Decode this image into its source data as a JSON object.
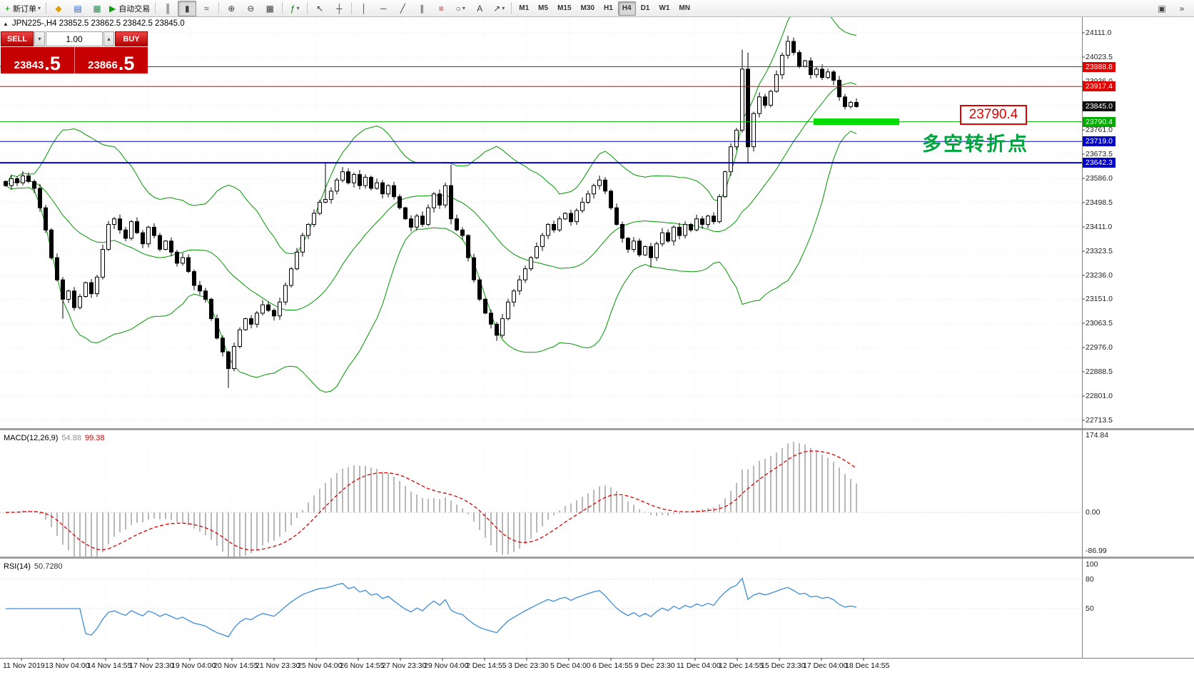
{
  "toolbar": {
    "items": [
      {
        "kind": "labeled",
        "name": "new-order-button",
        "icon": "new-order-icon",
        "glyph": "+",
        "glyph_color": "#0a9a0a",
        "label": "新订单",
        "caret": true
      },
      {
        "kind": "sep"
      },
      {
        "kind": "icon",
        "name": "metaquotes-button",
        "icon": "diamond-icon",
        "glyph": "◆",
        "glyph_color": "#e0a000"
      },
      {
        "kind": "icon",
        "name": "profiles-button",
        "icon": "profile-icon",
        "glyph": "▤",
        "glyph_color": "#3060c0"
      },
      {
        "kind": "icon",
        "name": "chart-window-button",
        "icon": "chart-window-icon",
        "glyph": "▦",
        "glyph_color": "#2e8b57"
      },
      {
        "kind": "labeled",
        "name": "auto-trading-button",
        "icon": "play-icon",
        "glyph": "▶",
        "glyph_color": "#0aa00a",
        "label": "自动交易",
        "caret": false
      },
      {
        "kind": "sep"
      },
      {
        "kind": "icon",
        "name": "ohlc-bars-button",
        "icon": "bars-chart-icon",
        "glyph": "║",
        "glyph_color": "#404040"
      },
      {
        "kind": "icon",
        "name": "candlestick-chart-button",
        "icon": "candlestick-icon",
        "glyph": "▮",
        "glyph_color": "#404040",
        "active": true
      },
      {
        "kind": "icon",
        "name": "line-chart-button",
        "icon": "line-chart-icon",
        "glyph": "≈",
        "glyph_color": "#404040"
      },
      {
        "kind": "sep"
      },
      {
        "kind": "icon",
        "name": "zoom-in-button",
        "icon": "zoom-in-icon",
        "glyph": "⊕",
        "glyph_color": "#404040"
      },
      {
        "kind": "icon",
        "name": "zoom-out-button",
        "icon": "zoom-out-icon",
        "glyph": "⊖",
        "glyph_color": "#404040"
      },
      {
        "kind": "icon",
        "name": "tile-windows-button",
        "icon": "tile-windows-icon",
        "glyph": "▦",
        "glyph_color": "#404040"
      },
      {
        "kind": "sep"
      },
      {
        "kind": "icon",
        "name": "indicators-button",
        "icon": "indicators-icon",
        "glyph": "ƒ",
        "glyph_color": "#0a7a0a",
        "caret": true
      },
      {
        "kind": "sep"
      },
      {
        "kind": "icon",
        "name": "cursor-button",
        "icon": "cursor-icon",
        "glyph": "↖",
        "glyph_color": "#404040"
      },
      {
        "kind": "icon",
        "name": "crosshair-button",
        "icon": "crosshair-icon",
        "glyph": "┼",
        "glyph_color": "#404040"
      },
      {
        "kind": "sep"
      },
      {
        "kind": "icon",
        "name": "vertical-line-button",
        "icon": "vertical-line-icon",
        "glyph": "│",
        "glyph_color": "#404040"
      },
      {
        "kind": "icon",
        "name": "horizontal-line-button",
        "icon": "horizontal-line-icon",
        "glyph": "─",
        "glyph_color": "#404040"
      },
      {
        "kind": "icon",
        "name": "trendline-button",
        "icon": "trendline-icon",
        "glyph": "╱",
        "glyph_color": "#404040"
      },
      {
        "kind": "icon",
        "name": "channel-button",
        "icon": "channel-icon",
        "glyph": "∥",
        "glyph_color": "#404040"
      },
      {
        "kind": "icon",
        "name": "fibonacci-button",
        "icon": "fibonacci-icon",
        "glyph": "≡",
        "glyph_color": "#b03030"
      },
      {
        "kind": "icon",
        "name": "shapes-button",
        "icon": "ellipse-icon",
        "glyph": "○",
        "glyph_color": "#404040",
        "caret": true
      },
      {
        "kind": "icon",
        "name": "text-label-button",
        "icon": "text-icon",
        "glyph": "A",
        "glyph_color": "#404040"
      },
      {
        "kind": "icon",
        "name": "arrows-button",
        "icon": "arrow-icon",
        "glyph": "↗",
        "glyph_color": "#404040",
        "caret": true
      },
      {
        "kind": "sep"
      }
    ],
    "timeframes": [
      "M1",
      "M5",
      "M15",
      "M30",
      "H1",
      "H4",
      "D1",
      "W1",
      "MN"
    ],
    "active_timeframe": "H4",
    "right_icons": [
      {
        "name": "dock-panel-button",
        "icon": "dock-icon",
        "glyph": "▣"
      },
      {
        "name": "more-tools-button",
        "icon": "overflow-icon",
        "glyph": "»"
      }
    ]
  },
  "chart_header": {
    "collapse_glyph": "▲",
    "symbol_line": "JPN225-,H4 23852.5 23862.5 23842.5 23845.0"
  },
  "trade_panel": {
    "sell_label": "SELL",
    "buy_label": "BUY",
    "volume_value": "1.00",
    "volume_down_glyph": "▾",
    "volume_up_glyph": "▴",
    "sell_price_main": "23843",
    "sell_price_pips": ".5",
    "buy_price_main": "23866",
    "buy_price_pips": ".5"
  },
  "price_axis": {
    "gridline_labels": [
      "24111.0",
      "24023.5",
      "23936.0",
      "23848.5",
      "23761.0",
      "23673.5",
      "23586.0",
      "23498.5",
      "23411.0",
      "23323.5",
      "23236.0",
      "23151.0",
      "23063.5",
      "22976.0",
      "22888.5",
      "22801.0",
      "22713.5"
    ],
    "tags": [
      {
        "label": "23988.8",
        "bg": "#e00000"
      },
      {
        "label": "23917.4",
        "bg": "#e00000"
      },
      {
        "label": "23845.0",
        "bg": "#101010"
      },
      {
        "label": "23790.4",
        "bg": "#00a800"
      },
      {
        "label": "23719.0",
        "bg": "#0000c8"
      },
      {
        "label": "23642.3",
        "bg": "#0000c8"
      }
    ]
  },
  "objects": {
    "horizontal_lines": [
      {
        "price": 23988.8,
        "color": "#e00000",
        "width": 1
      },
      {
        "price": 23917.4,
        "color": "#e00000",
        "width": 1
      },
      {
        "price": 23790.4,
        "color": "#00b400",
        "width": 1
      },
      {
        "price": 23719.0,
        "color": "#0000c8",
        "width": 1
      },
      {
        "price": 23642.3,
        "color": "#0000c8",
        "width": 2
      }
    ],
    "highlight_bar_price": 23790.4
  },
  "annotations": {
    "price_box_label": "23790.4",
    "turning_point_text": "多空转折点"
  },
  "macd_panel": {
    "name": "MACD(12,26,9)",
    "main_value": "54.88",
    "signal_value": "99.38",
    "scale_labels": [
      "174.84",
      "0.00",
      "-86.99"
    ]
  },
  "rsi_panel": {
    "name": "RSI(14)",
    "value": "50.7280",
    "scale_labels": [
      "100",
      "80",
      "50"
    ]
  },
  "time_axis": {
    "labels": [
      "11 Nov 2019",
      "13 Nov 04:00",
      "14 Nov 14:55",
      "17 Nov 23:30",
      "19 Nov 04:00",
      "20 Nov 14:55",
      "21 Nov 23:30",
      "25 Nov 04:00",
      "26 Nov 14:55",
      "27 Nov 23:30",
      "29 Nov 04:00",
      "2 Dec 14:55",
      "3 Dec 23:30",
      "5 Dec 04:00",
      "6 Dec 14:55",
      "9 Dec 23:30",
      "11 Dec 04:00",
      "12 Dec 14:55",
      "15 Dec 23:30",
      "17 Dec 04:00",
      "18 Dec 14:55"
    ]
  },
  "colors": {
    "bull_body": "#ffffff",
    "bear_body": "#000000",
    "candle_outline": "#000000",
    "bollinger": "#009600",
    "macd_histogram": "#b8b8b8",
    "macd_signal": "#dc0000",
    "rsi_line": "#3c8cdc",
    "grid": "#e6e6e6",
    "axis_border": "#808080",
    "highlight_bar": "#00dc00"
  },
  "chart_data": {
    "type": "candlestick",
    "title": "JPN225-,H4",
    "ohlc_display": {
      "open": "23852.5",
      "high": "23862.5",
      "low": "23842.5",
      "close": "23845.0"
    },
    "y_axis_range": [
      22713.5,
      24111.0
    ],
    "indicators": [
      "Bollinger Bands",
      "MACD(12,26,9)",
      "RSI(14)"
    ],
    "closes": [
      23560,
      23585,
      23570,
      23595,
      23575,
      23550,
      23480,
      23400,
      23300,
      23220,
      23150,
      23180,
      23120,
      23160,
      23210,
      23170,
      23230,
      23330,
      23420,
      23440,
      23400,
      23370,
      23430,
      23390,
      23350,
      23410,
      23380,
      23330,
      23360,
      23320,
      23280,
      23300,
      23250,
      23200,
      23180,
      23150,
      23080,
      23010,
      22960,
      22900,
      22980,
      23040,
      23080,
      23060,
      23100,
      23130,
      23110,
      23090,
      23140,
      23200,
      23260,
      23320,
      23380,
      23420,
      23460,
      23500,
      23510,
      23540,
      23580,
      23610,
      23570,
      23600,
      23560,
      23590,
      23550,
      23570,
      23530,
      23560,
      23520,
      23480,
      23440,
      23410,
      23450,
      23420,
      23480,
      23530,
      23490,
      23560,
      23440,
      23400,
      23380,
      23300,
      23220,
      23150,
      23100,
      23060,
      23020,
      23080,
      23140,
      23180,
      23220,
      23260,
      23300,
      23340,
      23380,
      23420,
      23400,
      23440,
      23460,
      23430,
      23470,
      23500,
      23530,
      23560,
      23580,
      23540,
      23480,
      23420,
      23370,
      23330,
      23360,
      23310,
      23340,
      23300,
      23350,
      23390,
      23360,
      23410,
      23380,
      23420,
      23400,
      23440,
      23420,
      23450,
      23430,
      23520,
      23610,
      23700,
      23760,
      23980,
      23700,
      23820,
      23880,
      23850,
      23900,
      23960,
      24030,
      24080,
      24040,
      23990,
      24010,
      23960,
      23980,
      23950,
      23970,
      23940,
      23880,
      23845,
      23860,
      23845
    ],
    "wick_overrides": {
      "10": {
        "low": 23080
      },
      "39": {
        "low": 22830
      },
      "56": {
        "high": 23645
      },
      "78": {
        "high": 23635,
        "low": 23420
      },
      "86": {
        "low": 23000
      },
      "113": {
        "low": 23265
      },
      "129": {
        "high": 24050
      },
      "130": {
        "high": 24040,
        "low": 23640
      },
      "137": {
        "high": 24100
      }
    }
  }
}
